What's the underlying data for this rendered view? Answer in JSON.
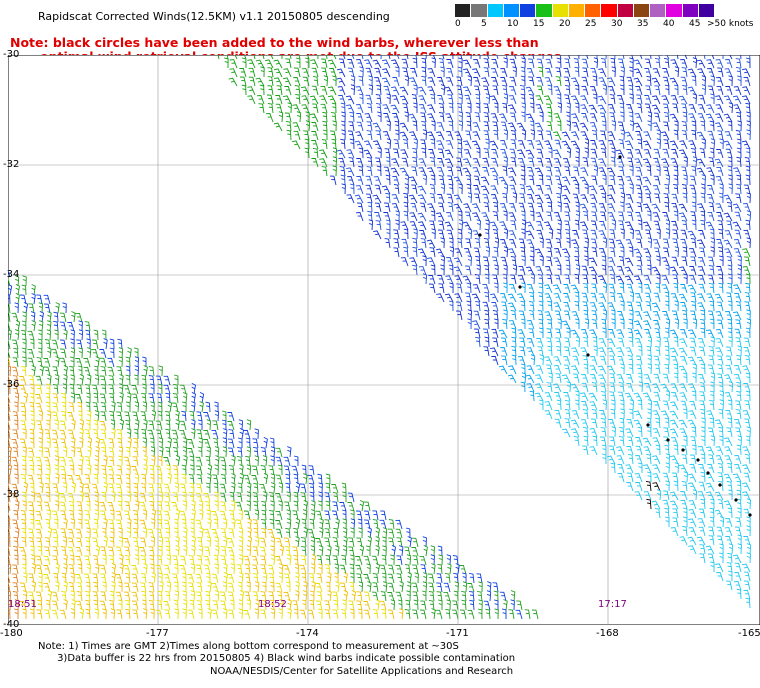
{
  "header": {
    "title": "Rapidscat Corrected Winds(12.5KM) v1.1 20150805 descending",
    "note_line1": "Note: black circles have been added to the wind barbs, wherever less than",
    "note_line2": "optimal wind retrieval conditions are met due to the ISS attitude changes."
  },
  "legend": {
    "unit_label": ">50 knots",
    "labels": [
      "0",
      "5",
      "10",
      "15",
      "20",
      "25",
      "30",
      "35",
      "40",
      "45"
    ],
    "colors": [
      "#222222",
      "#777777",
      "#00c8ff",
      "#0090ff",
      "#1040e0",
      "#18c018",
      "#e8e000",
      "#ffb000",
      "#ff6000",
      "#ff0000",
      "#c00040",
      "#8b4513",
      "#b060c0",
      "#e000e0",
      "#8000c0",
      "#4000a0"
    ]
  },
  "map": {
    "x_ticks": [
      "-180",
      "-177",
      "-174",
      "-171",
      "-168",
      "-165"
    ],
    "y_ticks": [
      "-30",
      "-32",
      "-34",
      "-36",
      "-38",
      "-40"
    ],
    "times": [
      "18:51",
      "18:52",
      "17:17"
    ]
  },
  "footer": {
    "line1": "Note: 1) Times are GMT 2)Times along bottom correspond to measurement at ~30S",
    "line2": "      3)Data buffer is 22 hrs from 20150805 4) Black wind barbs indicate possible contamination",
    "credit": "NOAA/NESDIS/Center for Satellite Applications and Research"
  },
  "colors": {
    "swath_east": [
      "#10a010",
      "#1030d0",
      "#2050e0",
      "#00a0f0",
      "#20c8f0",
      "#000000"
    ],
    "swath_west": [
      "#e8e000",
      "#f0c000",
      "#e08020",
      "#20a020",
      "#1040e0"
    ]
  }
}
